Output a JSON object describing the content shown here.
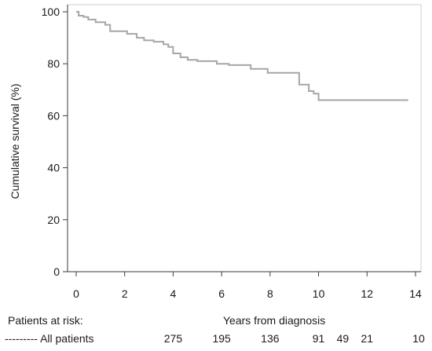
{
  "chart_data": {
    "type": "line",
    "title": "",
    "xlabel": "Years from diagnosis",
    "ylabel": "Cumulative survival (%)",
    "xlim": [
      0,
      14
    ],
    "ylim": [
      0,
      100
    ],
    "xticks": [
      "0",
      "2",
      "4",
      "6",
      "8",
      "10",
      "12",
      "14"
    ],
    "yticks": [
      "0",
      "20",
      "40",
      "60",
      "80",
      "100"
    ],
    "grid": false,
    "series": [
      {
        "color": "#a6a6a6",
        "x": [
          0,
          0.1,
          0.3,
          0.5,
          0.8,
          1.2,
          1.4,
          2.1,
          2.5,
          2.8,
          3.2,
          3.6,
          3.8,
          4.0,
          4.3,
          4.6,
          5.0,
          5.8,
          6.3,
          7.2,
          7.9,
          9.2,
          9.6,
          9.8,
          10.0,
          13.7
        ],
        "y": [
          100,
          98.5,
          98,
          97,
          96,
          95,
          92.5,
          91.5,
          90,
          89,
          88.5,
          87.5,
          86.5,
          84,
          82.5,
          81.5,
          81,
          80,
          79.5,
          78,
          76.5,
          72,
          69.5,
          68.5,
          66,
          66
        ]
      }
    ]
  },
  "risk_table": {
    "header": "Patients at risk:",
    "row_label": "--------- All patients",
    "values": [
      "275",
      "195",
      "136",
      "91",
      "49",
      "21",
      "10"
    ],
    "x": [
      4,
      6,
      8,
      10,
      11,
      12,
      14
    ]
  }
}
